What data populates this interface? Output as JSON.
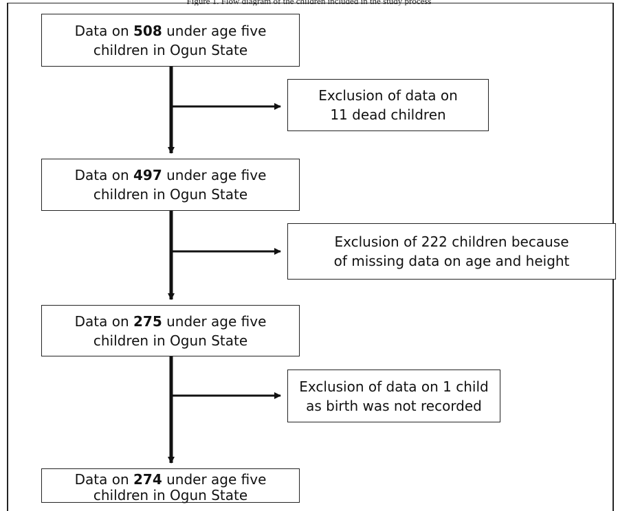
{
  "caption": "Figure 1. Flow diagram of the children included in the study process",
  "main_boxes": [
    {
      "pre": "Data on ",
      "count": "508",
      "post": " under age five",
      "line2": "children in Ogun State"
    },
    {
      "pre": "Data on ",
      "count": "497",
      "post": " under age five",
      "line2": "children in Ogun State"
    },
    {
      "pre": "Data on ",
      "count": "275",
      "post": " under age five",
      "line2": "children in Ogun State"
    },
    {
      "pre": "Data on ",
      "count": "274",
      "post": " under age five",
      "line2": "children in Ogun State"
    }
  ],
  "exclusion_boxes": [
    {
      "line1": "Exclusion of data on",
      "line2": "11 dead children"
    },
    {
      "line1": "Exclusion of 222 children because",
      "line2": "of missing data on age and height"
    },
    {
      "line1": "Exclusion of data on 1 child",
      "line2": "as birth was not recorded"
    }
  ]
}
